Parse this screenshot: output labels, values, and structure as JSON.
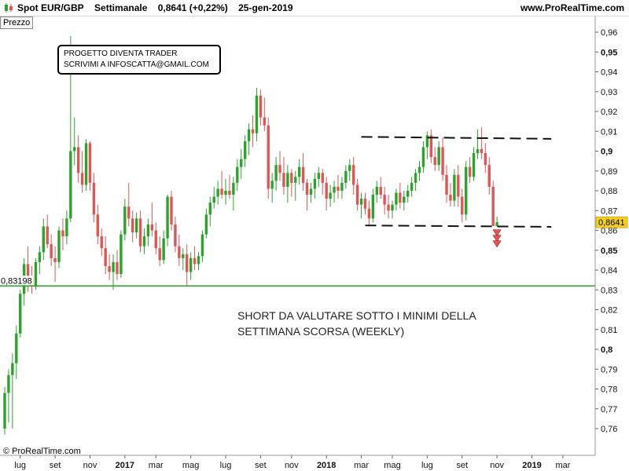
{
  "header": {
    "title_parts": [
      "Spot EUR/GBP",
      "Settimanale",
      "0,8641 (+0,22%)",
      "25-gen-2019"
    ],
    "url": "www.ProRealTime.com"
  },
  "panel": {
    "tab_label": "Prezzo"
  },
  "footer": {
    "copyright": "© ProRealTime.com"
  },
  "annotations": {
    "box_lines": [
      "PROGETTO DIVENTA TRADER",
      "SCRIVIMI  A INFOSCATTA@GMAIL.COM"
    ],
    "note_lines": [
      "SHORT DA VALUTARE SOTTO I MINIMI DELLA",
      "SETTIMANA SCORSA (WEEKLY)"
    ]
  },
  "colors": {
    "up": "#2ca42c",
    "down": "#e05555",
    "support_line": "#22aa22",
    "price_badge": "#f5d020"
  },
  "chart_data": {
    "type": "candlestick",
    "title": "Spot EUR/GBP",
    "timeframe": "Settimanale",
    "last_price": "0,8641",
    "last_price_value": 0.8641,
    "ylim": [
      0.755,
      0.965
    ],
    "y_ticks": [
      {
        "v": 0.96,
        "label": "0,96",
        "bold": false
      },
      {
        "v": 0.95,
        "label": "0,95",
        "bold": true
      },
      {
        "v": 0.94,
        "label": "0,94",
        "bold": false
      },
      {
        "v": 0.93,
        "label": "0,93",
        "bold": false
      },
      {
        "v": 0.92,
        "label": "0,92",
        "bold": false
      },
      {
        "v": 0.91,
        "label": "0,91",
        "bold": false
      },
      {
        "v": 0.9,
        "label": "0,9",
        "bold": true
      },
      {
        "v": 0.89,
        "label": "0,89",
        "bold": false
      },
      {
        "v": 0.88,
        "label": "0,88",
        "bold": false
      },
      {
        "v": 0.87,
        "label": "0,87",
        "bold": false
      },
      {
        "v": 0.86,
        "label": "0,86",
        "bold": false
      },
      {
        "v": 0.85,
        "label": "0,85",
        "bold": true
      },
      {
        "v": 0.84,
        "label": "0,84",
        "bold": false
      },
      {
        "v": 0.83,
        "label": "0,83",
        "bold": false
      },
      {
        "v": 0.82,
        "label": "0,82",
        "bold": false
      },
      {
        "v": 0.81,
        "label": "0,81",
        "bold": false
      },
      {
        "v": 0.8,
        "label": "0,8",
        "bold": true
      },
      {
        "v": 0.79,
        "label": "0,79",
        "bold": false
      },
      {
        "v": 0.78,
        "label": "0,78",
        "bold": false
      },
      {
        "v": 0.77,
        "label": "0,77",
        "bold": false
      },
      {
        "v": 0.76,
        "label": "0,76",
        "bold": false
      }
    ],
    "x_labels": [
      {
        "week": 4,
        "label": "lug",
        "bold": false
      },
      {
        "week": 13,
        "label": "set",
        "bold": false
      },
      {
        "week": 22,
        "label": "nov",
        "bold": false
      },
      {
        "week": 31,
        "label": "2017",
        "bold": true
      },
      {
        "week": 39,
        "label": "mar",
        "bold": false
      },
      {
        "week": 48,
        "label": "mag",
        "bold": false
      },
      {
        "week": 57,
        "label": "lug",
        "bold": false
      },
      {
        "week": 66,
        "label": "set",
        "bold": false
      },
      {
        "week": 74,
        "label": "nov",
        "bold": false
      },
      {
        "week": 83,
        "label": "2018",
        "bold": true
      },
      {
        "week": 92,
        "label": "mar",
        "bold": false
      },
      {
        "week": 100,
        "label": "mag",
        "bold": false
      },
      {
        "week": 109,
        "label": "lug",
        "bold": false
      },
      {
        "week": 118,
        "label": "set",
        "bold": false
      },
      {
        "week": 127,
        "label": "nov",
        "bold": false
      },
      {
        "week": 136,
        "label": "2019",
        "bold": true
      },
      {
        "week": 144,
        "label": "mar",
        "bold": false
      }
    ],
    "support_level": 0.83198,
    "support_label": "0,83198",
    "range_top": {
      "start_week": 92,
      "end_week": 140,
      "start_price": 0.9072,
      "end_price": 0.9062
    },
    "range_bottom": {
      "start_week": 93,
      "end_week": 140,
      "start_price": 0.8625,
      "end_price": 0.8618
    },
    "candles": [
      [
        0.76,
        0.781,
        0.757,
        0.778
      ],
      [
        0.778,
        0.79,
        0.763,
        0.787
      ],
      [
        0.787,
        0.798,
        0.76,
        0.793
      ],
      [
        0.793,
        0.812,
        0.785,
        0.808
      ],
      [
        0.808,
        0.83,
        0.806,
        0.828
      ],
      [
        0.828,
        0.846,
        0.822,
        0.843
      ],
      [
        0.843,
        0.852,
        0.829,
        0.837
      ],
      [
        0.837,
        0.842,
        0.828,
        0.832
      ],
      [
        0.832,
        0.846,
        0.83,
        0.844
      ],
      [
        0.844,
        0.852,
        0.838,
        0.849
      ],
      [
        0.849,
        0.866,
        0.845,
        0.862
      ],
      [
        0.862,
        0.868,
        0.851,
        0.853
      ],
      [
        0.853,
        0.858,
        0.842,
        0.846
      ],
      [
        0.846,
        0.852,
        0.834,
        0.844
      ],
      [
        0.844,
        0.862,
        0.841,
        0.86
      ],
      [
        0.86,
        0.866,
        0.85,
        0.857
      ],
      [
        0.857,
        0.87,
        0.853,
        0.866
      ],
      [
        0.866,
        0.958,
        0.864,
        0.9
      ],
      [
        0.9,
        0.917,
        0.893,
        0.902
      ],
      [
        0.902,
        0.908,
        0.884,
        0.889
      ],
      [
        0.889,
        0.9,
        0.879,
        0.883
      ],
      [
        0.883,
        0.906,
        0.88,
        0.904
      ],
      [
        0.904,
        0.905,
        0.88,
        0.884
      ],
      [
        0.884,
        0.889,
        0.864,
        0.868
      ],
      [
        0.868,
        0.873,
        0.853,
        0.857
      ],
      [
        0.857,
        0.861,
        0.847,
        0.851
      ],
      [
        0.851,
        0.857,
        0.838,
        0.842
      ],
      [
        0.842,
        0.848,
        0.835,
        0.839
      ],
      [
        0.839,
        0.848,
        0.83,
        0.844
      ],
      [
        0.844,
        0.85,
        0.835,
        0.838
      ],
      [
        0.838,
        0.86,
        0.836,
        0.858
      ],
      [
        0.858,
        0.876,
        0.855,
        0.872
      ],
      [
        0.872,
        0.884,
        0.862,
        0.866
      ],
      [
        0.866,
        0.87,
        0.854,
        0.859
      ],
      [
        0.859,
        0.869,
        0.856,
        0.866
      ],
      [
        0.866,
        0.87,
        0.849,
        0.852
      ],
      [
        0.852,
        0.861,
        0.848,
        0.857
      ],
      [
        0.857,
        0.866,
        0.852,
        0.863
      ],
      [
        0.863,
        0.874,
        0.857,
        0.86
      ],
      [
        0.86,
        0.864,
        0.848,
        0.851
      ],
      [
        0.851,
        0.857,
        0.842,
        0.845
      ],
      [
        0.845,
        0.86,
        0.843,
        0.856
      ],
      [
        0.856,
        0.878,
        0.852,
        0.877
      ],
      [
        0.877,
        0.88,
        0.86,
        0.863
      ],
      [
        0.863,
        0.867,
        0.849,
        0.852
      ],
      [
        0.852,
        0.858,
        0.842,
        0.846
      ],
      [
        0.846,
        0.851,
        0.84,
        0.848
      ],
      [
        0.848,
        0.853,
        0.832,
        0.839
      ],
      [
        0.839,
        0.849,
        0.835,
        0.846
      ],
      [
        0.846,
        0.852,
        0.84,
        0.843
      ],
      [
        0.843,
        0.849,
        0.84,
        0.847
      ],
      [
        0.847,
        0.86,
        0.844,
        0.858
      ],
      [
        0.858,
        0.871,
        0.856,
        0.868
      ],
      [
        0.868,
        0.877,
        0.862,
        0.874
      ],
      [
        0.874,
        0.882,
        0.871,
        0.877
      ],
      [
        0.877,
        0.885,
        0.873,
        0.881
      ],
      [
        0.881,
        0.89,
        0.876,
        0.878
      ],
      [
        0.878,
        0.886,
        0.873,
        0.88
      ],
      [
        0.88,
        0.888,
        0.876,
        0.878
      ],
      [
        0.878,
        0.887,
        0.87,
        0.884
      ],
      [
        0.884,
        0.896,
        0.88,
        0.892
      ],
      [
        0.892,
        0.901,
        0.886,
        0.896
      ],
      [
        0.896,
        0.908,
        0.892,
        0.905
      ],
      [
        0.905,
        0.914,
        0.898,
        0.911
      ],
      [
        0.911,
        0.918,
        0.902,
        0.909
      ],
      [
        0.909,
        0.932,
        0.905,
        0.928
      ],
      [
        0.928,
        0.931,
        0.913,
        0.917
      ],
      [
        0.917,
        0.927,
        0.91,
        0.913
      ],
      [
        0.913,
        0.917,
        0.876,
        0.881
      ],
      [
        0.881,
        0.889,
        0.874,
        0.885
      ],
      [
        0.885,
        0.897,
        0.88,
        0.893
      ],
      [
        0.893,
        0.9,
        0.885,
        0.889
      ],
      [
        0.889,
        0.897,
        0.878,
        0.882
      ],
      [
        0.882,
        0.893,
        0.874,
        0.889
      ],
      [
        0.889,
        0.891,
        0.877,
        0.884
      ],
      [
        0.884,
        0.89,
        0.875,
        0.887
      ],
      [
        0.887,
        0.896,
        0.883,
        0.892
      ],
      [
        0.892,
        0.899,
        0.88,
        0.884
      ],
      [
        0.884,
        0.886,
        0.87,
        0.878
      ],
      [
        0.878,
        0.884,
        0.874,
        0.881
      ],
      [
        0.881,
        0.889,
        0.876,
        0.886
      ],
      [
        0.886,
        0.892,
        0.882,
        0.889
      ],
      [
        0.889,
        0.891,
        0.878,
        0.884
      ],
      [
        0.884,
        0.887,
        0.87,
        0.876
      ],
      [
        0.876,
        0.883,
        0.872,
        0.879
      ],
      [
        0.879,
        0.885,
        0.874,
        0.882
      ],
      [
        0.882,
        0.888,
        0.876,
        0.88
      ],
      [
        0.88,
        0.887,
        0.876,
        0.884
      ],
      [
        0.884,
        0.893,
        0.881,
        0.89
      ],
      [
        0.89,
        0.896,
        0.885,
        0.893
      ],
      [
        0.893,
        0.897,
        0.878,
        0.883
      ],
      [
        0.883,
        0.886,
        0.87,
        0.873
      ],
      [
        0.873,
        0.879,
        0.866,
        0.876
      ],
      [
        0.876,
        0.879,
        0.868,
        0.871
      ],
      [
        0.871,
        0.875,
        0.862,
        0.866
      ],
      [
        0.866,
        0.881,
        0.864,
        0.878
      ],
      [
        0.878,
        0.885,
        0.874,
        0.882
      ],
      [
        0.882,
        0.887,
        0.876,
        0.878
      ],
      [
        0.878,
        0.882,
        0.868,
        0.873
      ],
      [
        0.873,
        0.878,
        0.866,
        0.87
      ],
      [
        0.87,
        0.875,
        0.866,
        0.873
      ],
      [
        0.873,
        0.881,
        0.87,
        0.879
      ],
      [
        0.879,
        0.884,
        0.871,
        0.874
      ],
      [
        0.874,
        0.88,
        0.87,
        0.877
      ],
      [
        0.877,
        0.883,
        0.874,
        0.88
      ],
      [
        0.88,
        0.887,
        0.877,
        0.884
      ],
      [
        0.884,
        0.891,
        0.88,
        0.889
      ],
      [
        0.889,
        0.895,
        0.885,
        0.892
      ],
      [
        0.892,
        0.905,
        0.889,
        0.902
      ],
      [
        0.902,
        0.91,
        0.896,
        0.908
      ],
      [
        0.908,
        0.911,
        0.894,
        0.897
      ],
      [
        0.897,
        0.902,
        0.89,
        0.893
      ],
      [
        0.893,
        0.905,
        0.89,
        0.902
      ],
      [
        0.902,
        0.907,
        0.885,
        0.888
      ],
      [
        0.888,
        0.893,
        0.874,
        0.878
      ],
      [
        0.878,
        0.884,
        0.872,
        0.875
      ],
      [
        0.875,
        0.891,
        0.872,
        0.888
      ],
      [
        0.888,
        0.893,
        0.872,
        0.877
      ],
      [
        0.877,
        0.881,
        0.864,
        0.868
      ],
      [
        0.868,
        0.895,
        0.865,
        0.892
      ],
      [
        0.892,
        0.897,
        0.884,
        0.887
      ],
      [
        0.887,
        0.902,
        0.885,
        0.899
      ],
      [
        0.899,
        0.911,
        0.896,
        0.901
      ],
      [
        0.901,
        0.912,
        0.896,
        0.899
      ],
      [
        0.899,
        0.904,
        0.889,
        0.893
      ],
      [
        0.893,
        0.897,
        0.878,
        0.882
      ],
      [
        0.882,
        0.885,
        0.863,
        0.8622
      ],
      [
        0.8622,
        0.867,
        0.862,
        0.8641
      ]
    ]
  }
}
